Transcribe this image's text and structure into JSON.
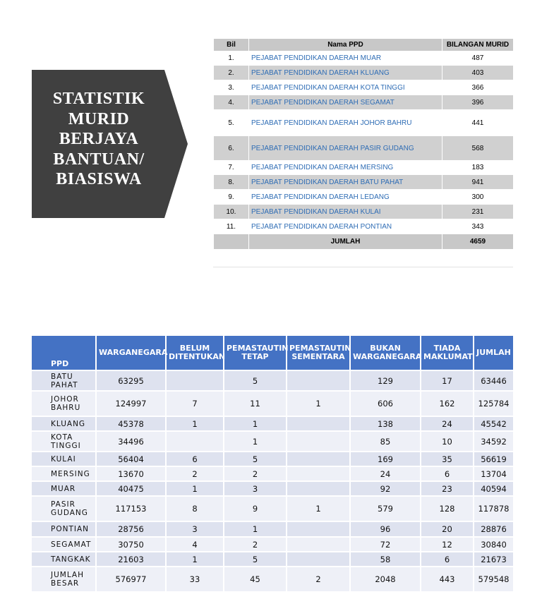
{
  "title_lines": [
    "STATISTIK",
    "MURID",
    "BERJAYA",
    "BANTUAN/",
    "BIASISWA"
  ],
  "summary_table": {
    "headers": [
      "Bil",
      "Nama PPD",
      "BILANGAN MURID"
    ],
    "rows": [
      [
        "1.",
        "PEJABAT PENDIDIKAN DAERAH MUAR",
        487
      ],
      [
        "2.",
        "PEJABAT PENDIDIKAN DAERAH KLUANG",
        403
      ],
      [
        "3.",
        "PEJABAT PENDIDIKAN DAERAH KOTA TINGGI",
        366
      ],
      [
        "4.",
        "PEJABAT PENDIDIKAN DAERAH SEGAMAT",
        396
      ],
      [
        "5.",
        "PEJABAT PENDIDIKAN DAERAH JOHOR BAHRU",
        441
      ],
      [
        "6.",
        "PEJABAT PENDIDIKAN DAERAH PASIR GUDANG",
        568
      ],
      [
        "7.",
        "PEJABAT PENDIDIKAN DAERAH MERSING",
        183
      ],
      [
        "8.",
        "PEJABAT PENDIDIKAN DAERAH BATU PAHAT",
        941
      ],
      [
        "9.",
        "PEJABAT PENDIDIKAN DAERAH LEDANG",
        300
      ],
      [
        "10.",
        "PEJABAT PENDIDIKAN DAERAH KULAI",
        231
      ],
      [
        "11.",
        "PEJABAT PENDIDIKAN DAERAH PONTIAN",
        343
      ]
    ],
    "total_label": "JUMLAH",
    "total": 4659
  },
  "detail_table": {
    "headers": [
      "PPD",
      "WARGANEGARA",
      "BELUM DITENTUKAN",
      "PEMASTAUTIN TETAP",
      "PEMASTAUTIN SEMENTARA",
      "BUKAN WARGANEGARA",
      "TIADA MAKLUMAT",
      "JUMLAH"
    ],
    "rows": [
      [
        "BATU PAHAT",
        63295,
        null,
        5,
        null,
        129,
        17,
        63446
      ],
      [
        "JOHOR BAHRU",
        124997,
        7,
        11,
        1,
        606,
        162,
        125784
      ],
      [
        "KLUANG",
        45378,
        1,
        1,
        null,
        138,
        24,
        45542
      ],
      [
        "KOTA TINGGI",
        34496,
        null,
        1,
        null,
        85,
        10,
        34592
      ],
      [
        "KULAI",
        56404,
        6,
        5,
        null,
        169,
        35,
        56619
      ],
      [
        "MERSING",
        13670,
        2,
        2,
        null,
        24,
        6,
        13704
      ],
      [
        "MUAR",
        40475,
        1,
        3,
        null,
        92,
        23,
        40594
      ],
      [
        "PASIR GUDANG",
        117153,
        8,
        9,
        1,
        579,
        128,
        117878
      ],
      [
        "PONTIAN",
        28756,
        3,
        1,
        null,
        96,
        20,
        28876
      ],
      [
        "SEGAMAT",
        30750,
        4,
        2,
        null,
        72,
        12,
        30840
      ],
      [
        "TANGKAK",
        21603,
        1,
        5,
        null,
        58,
        6,
        21673
      ],
      [
        "JUMLAH BESAR",
        576977,
        33,
        45,
        2,
        2048,
        443,
        579548
      ]
    ]
  }
}
